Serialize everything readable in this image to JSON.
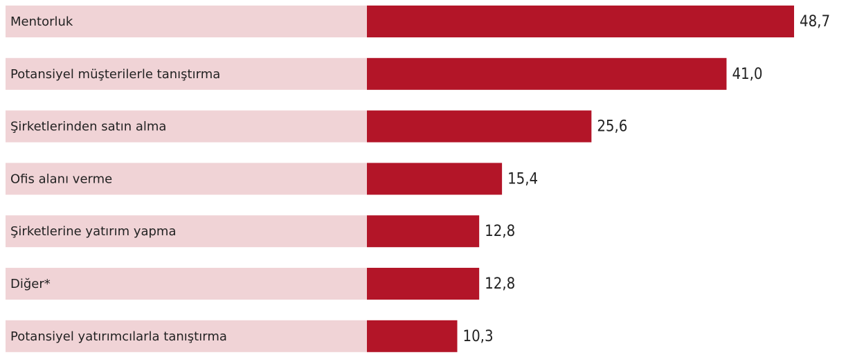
{
  "chart_data": {
    "type": "bar",
    "orientation": "horizontal",
    "categories": [
      "Mentorluk",
      "Potansiyel müşterilerle tanıştırma",
      "Şirketlerinden satın alma",
      "Ofis alanı verme",
      "Şirketlerine yatırım yapma",
      "Diğer*",
      "Potansiyel yatırımcılarla tanıştırma"
    ],
    "values": [
      48.7,
      41.0,
      25.6,
      15.4,
      12.8,
      12.8,
      10.3
    ],
    "value_labels": [
      "48,7",
      "41,0",
      "25,6",
      "15,4",
      "12,8",
      "12,8",
      "10,3"
    ],
    "color": "#b31528",
    "label_background": "#f0d3d6"
  }
}
